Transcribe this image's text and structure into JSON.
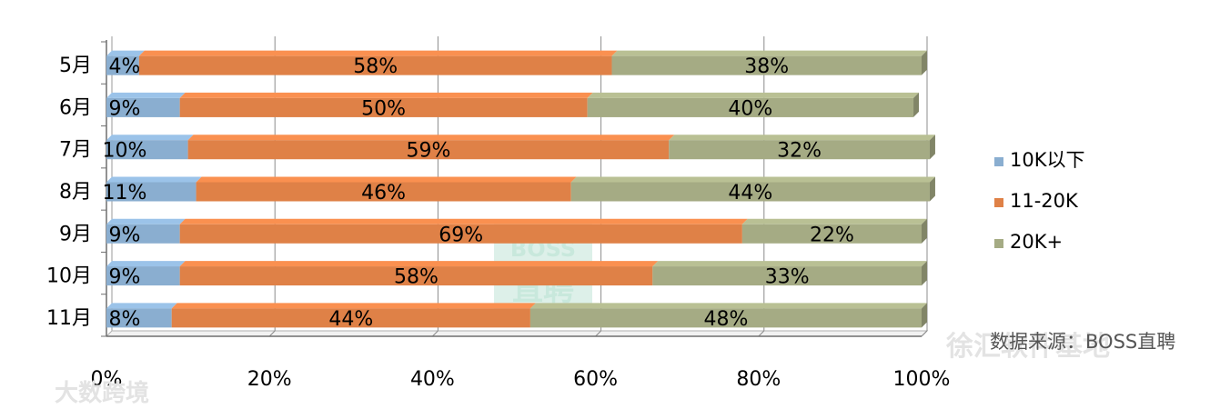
{
  "chart_data": {
    "type": "bar",
    "orientation": "horizontal",
    "stacked": true,
    "categories": [
      "5月",
      "6月",
      "7月",
      "8月",
      "9月",
      "10月",
      "11月"
    ],
    "series": [
      {
        "name": "10K以下",
        "color": "#8aaed0",
        "values": [
          4,
          9,
          10,
          11,
          9,
          9,
          8
        ],
        "labels": [
          "4%",
          "9%",
          "10%",
          "11%",
          "9%",
          "9%",
          "8%"
        ]
      },
      {
        "name": "11-20K",
        "color": "#df8147",
        "values": [
          58,
          50,
          59,
          46,
          69,
          58,
          44
        ],
        "labels": [
          "58%",
          "50%",
          "59%",
          "46%",
          "69%",
          "58%",
          "44%"
        ]
      },
      {
        "name": "20K+",
        "color": "#a5ab84",
        "values": [
          38,
          40,
          32,
          44,
          22,
          33,
          48
        ],
        "labels": [
          "38%",
          "40%",
          "32%",
          "44%",
          "22%",
          "33%",
          "48%"
        ]
      }
    ],
    "xlim": [
      0,
      100
    ],
    "xticks": [
      "0%",
      "20%",
      "40%",
      "60%",
      "80%",
      "100%"
    ],
    "grid": true,
    "legend_position": "right"
  },
  "source_text": "数据来源：BOSS直聘",
  "watermarks": {
    "center": [
      "BOSS",
      "直聘"
    ],
    "bottom_left": "大数跨境",
    "bottom_right": "徐汇软件基地"
  }
}
